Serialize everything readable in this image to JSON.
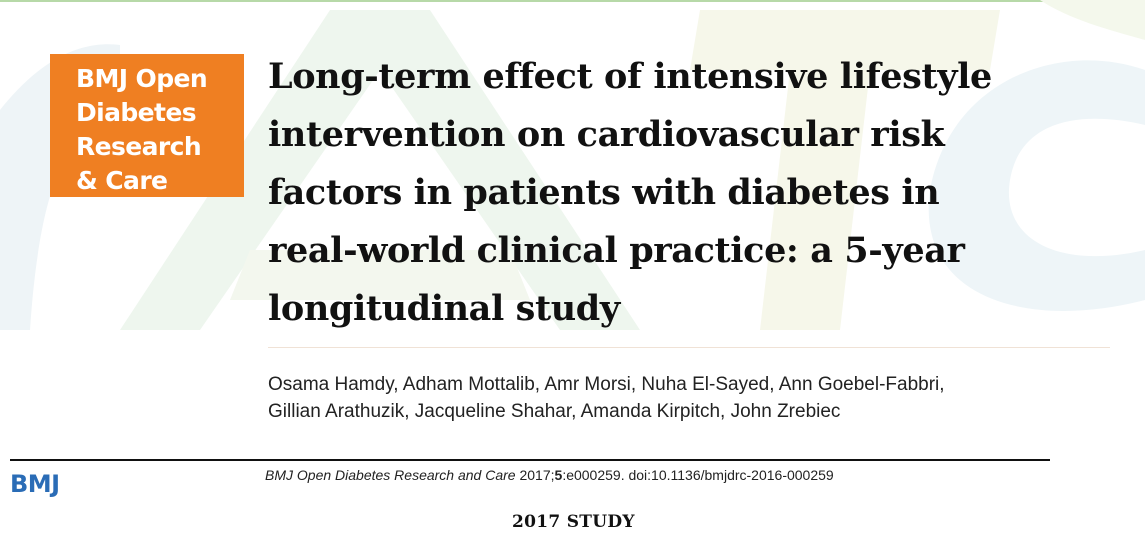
{
  "journal_logo": {
    "lines": [
      "BMJ Open",
      "Diabetes",
      "Research",
      "& Care"
    ],
    "color": "#ef7f22"
  },
  "title_lines": [
    "Long-term effect of intensive lifestyle",
    "intervention on cardiovascular risk",
    "factors in patients with diabetes in",
    "real-world clinical practice: a 5-year",
    "longitudinal study"
  ],
  "authors_lines": [
    "Osama Hamdy, Adham Mottalib, Amr Morsi, Nuha El-Sayed, Ann Goebel-Fabbri,",
    "Gillian Arathuzik, Jacqueline Shahar, Amanda Kirpitch, John Zrebiec"
  ],
  "footer": {
    "publisher_logo": "BMJ",
    "publisher_color": "#2a6cb6",
    "citation": {
      "journal": "BMJ Open Diabetes Research and Care",
      "year": " 2017;",
      "volume": "5",
      "rest": ":e000259. doi:10.1136/bmjdrc-2016-000259"
    }
  },
  "caption": "2017 STUDY"
}
